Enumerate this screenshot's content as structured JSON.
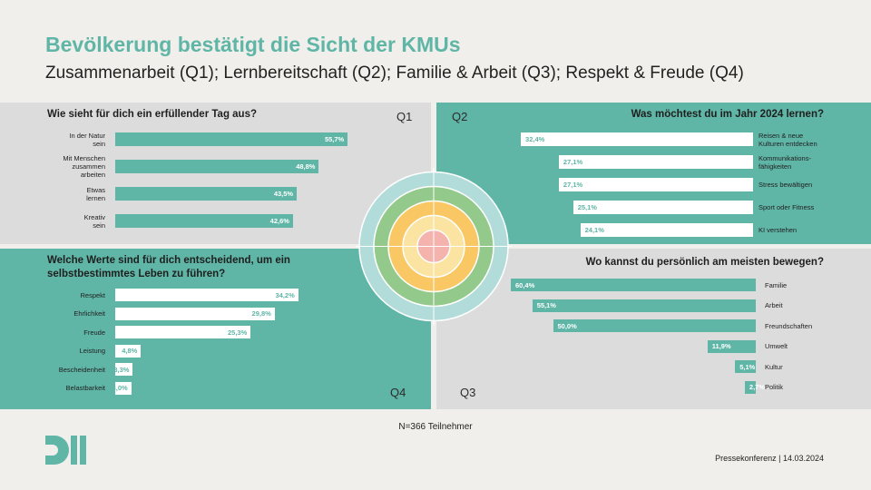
{
  "header": {
    "title": "Bevölkerung bestätigt die Sicht der KMUs",
    "subtitle": "Zusammenarbeit (Q1); Lernbereitschaft (Q2); Familie & Arbeit (Q3); Respekt & Freude (Q4)"
  },
  "quadrant_labels": {
    "q1": "Q1",
    "q2": "Q2",
    "q3": "Q3",
    "q4": "Q4"
  },
  "colors": {
    "accent": "#5fb5a6",
    "grey": "#dcdcdc",
    "ring_outer": "#b2dcd9",
    "ring_green": "#93c98a",
    "ring_orange": "#f9c763",
    "ring_yellow": "#fbe3a1",
    "ring_center": "#f4b3ad"
  },
  "chart_data": [
    {
      "type": "bar",
      "id": "q1",
      "title": "Wie sieht für dich ein erfüllender Tag aus?",
      "categories": [
        "In der Natur sein",
        "Mit Menschen zusammen arbeiten",
        "Etwas lernen",
        "Kreativ sein"
      ],
      "category_lines": [
        [
          "In der Natur",
          "sein"
        ],
        [
          "Mit Menschen",
          "zusammen",
          "arbeiten"
        ],
        [
          "Etwas",
          "lernen"
        ],
        [
          "Kreativ",
          "sein"
        ]
      ],
      "values": [
        55.7,
        48.8,
        43.5,
        42.6
      ],
      "value_labels": [
        "55,7%",
        "48,8%",
        "43,5%",
        "42,6%"
      ]
    },
    {
      "type": "bar",
      "id": "q2",
      "title": "Was möchtest du im Jahr 2024 lernen?",
      "categories": [
        "Reisen & neue Kulturen entdecken",
        "Kommunikationsfähigkeiten",
        "Stress bewältigen",
        "Sport oder Fitness",
        "KI verstehen"
      ],
      "category_lines": [
        [
          "Reisen & neue",
          "Kulturen entdecken"
        ],
        [
          "Kommunikations-",
          "fähigkeiten"
        ],
        [
          "Stress bewältigen"
        ],
        [
          "Sport oder Fitness"
        ],
        [
          "KI verstehen"
        ]
      ],
      "values": [
        32.4,
        27.1,
        27.1,
        25.1,
        24.1
      ],
      "value_labels": [
        "32,4%",
        "27,1%",
        "27,1%",
        "25,1%",
        "24,1%"
      ]
    },
    {
      "type": "bar",
      "id": "q3",
      "title": "Wo kannst du persönlich am meisten bewegen?",
      "categories": [
        "Familie",
        "Arbeit",
        "Freundschaften",
        "Umwelt",
        "Kultur",
        "Politik"
      ],
      "category_lines": [
        [
          "Familie"
        ],
        [
          "Arbeit"
        ],
        [
          "Freundschaften"
        ],
        [
          "Umwelt"
        ],
        [
          "Kultur"
        ],
        [
          "Politik"
        ]
      ],
      "values": [
        60.4,
        55.1,
        50.0,
        11.9,
        5.1,
        2.7
      ],
      "value_labels": [
        "60,4%",
        "55,1%",
        "50,0%",
        "11,9%",
        "5,1%",
        "2,7%"
      ]
    },
    {
      "type": "bar",
      "id": "q4",
      "title": "Welche Werte sind für dich entscheidend, um ein selbstbestimmtes Leben zu führen?",
      "categories": [
        "Respekt",
        "Ehrlichkeit",
        "Freude",
        "Leistung",
        "Bescheidenheit",
        "Belastbarkeit"
      ],
      "category_lines": [
        [
          "Respekt"
        ],
        [
          "Ehrlichkeit"
        ],
        [
          "Freude"
        ],
        [
          "Leistung"
        ],
        [
          "Bescheidenheit"
        ],
        [
          "Belastbarkeit"
        ]
      ],
      "values": [
        34.2,
        29.8,
        25.3,
        4.8,
        3.3,
        3.0
      ],
      "value_labels": [
        "34,2%",
        "29,8%",
        "25,3%",
        "4,8%",
        "3,3%",
        "3,0%"
      ]
    }
  ],
  "footer": {
    "note": "N=366 Teilnehmer",
    "press": "Pressekonferenz | 14.03.2024"
  }
}
